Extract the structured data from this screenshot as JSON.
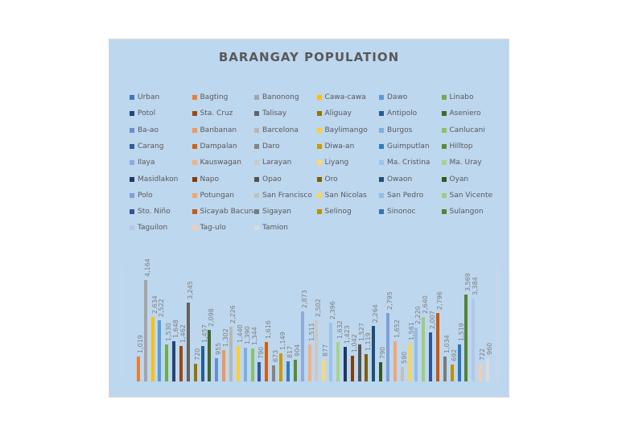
{
  "chart_data": {
    "type": "bar",
    "title": "BARANGAY POPULATION",
    "xlabel": "",
    "ylabel": "",
    "legend_position": "top",
    "grid": false,
    "data_labels": true,
    "ylim": [
      0,
      4500
    ],
    "categories": [
      "Urban",
      "Bagting",
      "Banonong",
      "Cawa-cawa",
      "Dawo",
      "Linabo",
      "Potol",
      "Sta. Cruz",
      "Talisay",
      "Aliguay",
      "Antipolo",
      "Aseniero",
      "Ba-ao",
      "Banbanan",
      "Barcelona",
      "Baylimango",
      "Burgos",
      "Canlucani",
      "Carang",
      "Dampalan",
      "Daro",
      "Diwa-an",
      "Guimputlan",
      "Hilltop",
      "Ilaya",
      "Kauswagan",
      "Larayan",
      "Liyang",
      "Ma. Cristina",
      "Ma. Uray",
      "Masidlakon",
      "Napo",
      "Opao",
      "Oro",
      "Owaon",
      "Oyan",
      "Polo",
      "Potungan",
      "San Francisco",
      "San Nicolas",
      "San Pedro",
      "San Vicente",
      "Sto. Niño",
      "Sicayab Bacuna",
      "Sigayan",
      "Selinog",
      "Sinonoc",
      "Sulangon",
      "Taguilon",
      "Tag-ulo",
      "Tamion"
    ],
    "values": [
      null,
      1019,
      4164,
      2634,
      2522,
      1530,
      1648,
      1462,
      3245,
      720,
      1457,
      2098,
      955,
      1302,
      2226,
      1440,
      1390,
      1344,
      790,
      1616,
      673,
      1149,
      817,
      904,
      2873,
      1511,
      2502,
      877,
      2396,
      1632,
      1423,
      1042,
      1527,
      1119,
      2264,
      790,
      2795,
      1652,
      590,
      1561,
      2220,
      2640,
      2007,
      2796,
      1034,
      692,
      1519,
      3569,
      3384,
      722,
      960
    ],
    "labels": [
      "",
      "1,019",
      "4,164",
      "2,634",
      "2,522",
      "1,530",
      "1,648",
      "1,462",
      "3,245",
      "720",
      "1,457",
      "2,098",
      "955",
      "1,302",
      "2,226",
      "1,440",
      "1,390",
      "1,344",
      "790",
      "1,616",
      "673",
      "1,149",
      "817",
      "904",
      "2,873",
      "1,511",
      "2,502",
      "877",
      "2,396",
      "1,632",
      "1,423",
      "1,042",
      "1,527",
      "1,119",
      "2,264",
      "790",
      "2,795",
      "1,652",
      "590",
      "1,561",
      "2,220",
      "2,640",
      "2,007",
      "2,796",
      "1,034",
      "692",
      "1,519",
      "3,569",
      "3,384",
      "722",
      "960"
    ],
    "colors": [
      "#4472c4",
      "#ed7d31",
      "#a5a5a5",
      "#ffc000",
      "#5b9bd5",
      "#70ad47",
      "#264478",
      "#9e480e",
      "#636363",
      "#997300",
      "#255e91",
      "#43682b",
      "#698ed0",
      "#f1975a",
      "#b7b7b7",
      "#ffcd33",
      "#7cafdd",
      "#8cc168",
      "#335aa1",
      "#d26012",
      "#848484",
      "#cc9a00",
      "#327dc2",
      "#5a8a39",
      "#8faadc",
      "#f4b183",
      "#c9c9c9",
      "#ffd966",
      "#9dc3e6",
      "#a9d18e",
      "#203864",
      "#843c0c",
      "#525252",
      "#7f6000",
      "#1f4e79",
      "#375623",
      "#7f9fd9",
      "#f4a56e",
      "#c0c0c0",
      "#ffd54f",
      "#95bde3",
      "#9fcc80",
      "#2f5597",
      "#c55a11",
      "#7b7b7b",
      "#bf9000",
      "#2e75b6",
      "#548235",
      "#b4c7e7",
      "#f8cbad",
      "#dbdbdb"
    ]
  },
  "legend": {
    "columns": 6
  }
}
